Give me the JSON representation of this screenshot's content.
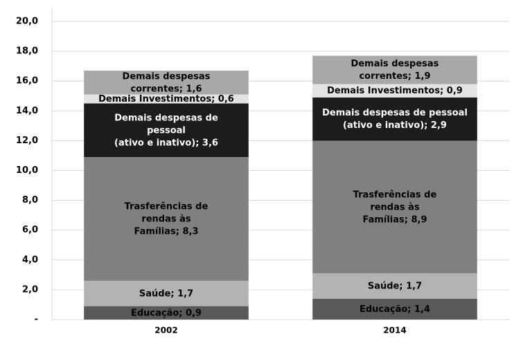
{
  "chart_data": {
    "type": "stacked_bar",
    "categories": [
      "2002",
      "2014"
    ],
    "ylim": [
      0,
      20
    ],
    "yticks": [
      {
        "value": 0,
        "label": "-"
      },
      {
        "value": 2,
        "label": "2,0"
      },
      {
        "value": 4,
        "label": "4,0"
      },
      {
        "value": 6,
        "label": "6,0"
      },
      {
        "value": 8,
        "label": "8,0"
      },
      {
        "value": 10,
        "label": "10,0"
      },
      {
        "value": 12,
        "label": "12,0"
      },
      {
        "value": 14,
        "label": "14,0"
      },
      {
        "value": 16,
        "label": "16,0"
      },
      {
        "value": 18,
        "label": "18,0"
      },
      {
        "value": 20,
        "label": "20,0"
      }
    ],
    "grid": true,
    "series": [
      {
        "color": "#595959",
        "label_color": "#000000",
        "values": [
          0.9,
          1.4
        ],
        "value_labels": [
          [
            "Educação;  0,9"
          ],
          [
            "Educação;  1,4"
          ]
        ]
      },
      {
        "color": "#b3b3b3",
        "label_color": "#000000",
        "values": [
          1.7,
          1.7
        ],
        "value_labels": [
          [
            "Saúde;  1,7"
          ],
          [
            "Saúde;  1,7"
          ]
        ]
      },
      {
        "color": "#808080",
        "label_color": "#000000",
        "values": [
          8.3,
          8.9
        ],
        "value_labels": [
          [
            "Trasferências de",
            "rendas às",
            "Famílias;  8,3"
          ],
          [
            "Trasferências de",
            "rendas às",
            "Famílias;  8,9"
          ]
        ]
      },
      {
        "color": "#1c1c1c",
        "label_color": "#ffffff",
        "values": [
          3.6,
          2.9
        ],
        "value_labels": [
          [
            "Demais despesas de",
            "pessoal",
            "(ativo e inativo);  3,6"
          ],
          [
            "Demais despesas de pessoal",
            "(ativo e inativo);  2,9"
          ]
        ]
      },
      {
        "color": "#e3e3e3",
        "label_color": "#000000",
        "values": [
          0.6,
          0.9
        ],
        "value_labels": [
          [
            "Demais Investimentos;  0,6"
          ],
          [
            "Demais Investimentos;  0,9"
          ]
        ]
      },
      {
        "color": "#a8a8a8",
        "label_color": "#000000",
        "values": [
          1.6,
          1.9
        ],
        "value_labels": [
          [
            "Demais despesas",
            "correntes;  1,6"
          ],
          [
            "Demais despesas",
            "correntes;  1,9"
          ]
        ]
      }
    ]
  }
}
